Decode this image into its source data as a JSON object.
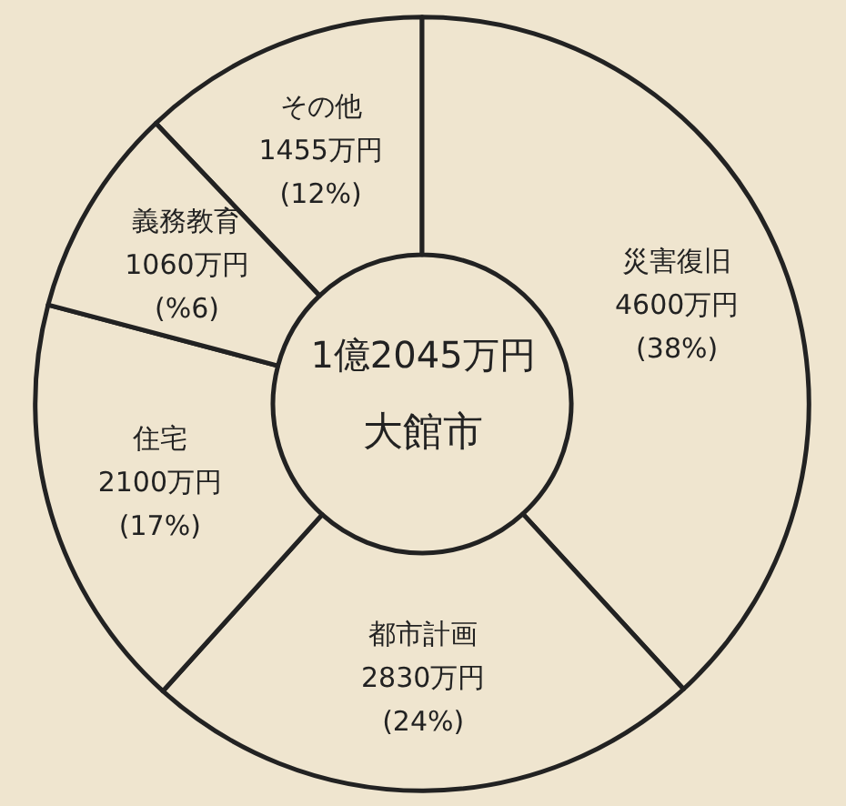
{
  "chart_data": {
    "type": "donut",
    "title": "1億2045万円",
    "subtitle": "大館市",
    "categories": [
      "その他",
      "災害復旧",
      "都市計画",
      "住宅",
      "義務教育"
    ],
    "values": [
      1455,
      4600,
      2830,
      2100,
      1060
    ],
    "value_labels": [
      "1455万円 (12%)",
      "4600万円 (38%)",
      "2830万円 (24%)",
      "2100万円 (17%)",
      "1060万円 (%6)"
    ],
    "colors": [
      "#efe5cf",
      "#efe5cf",
      "#efe5cf",
      "#efe5cf",
      "#efe5cf"
    ],
    "legend": false
  }
}
